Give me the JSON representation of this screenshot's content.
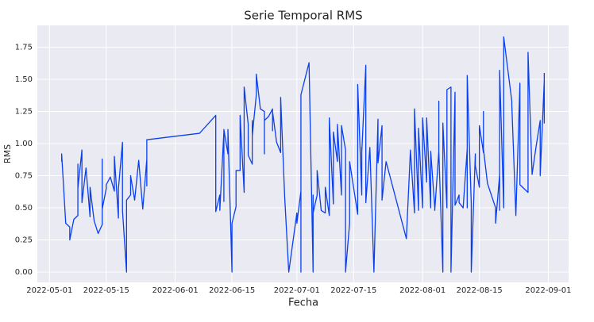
{
  "chart_data": {
    "type": "line",
    "title": "Serie Temporal RMS",
    "x_label": "Fecha",
    "y_label": "RMS",
    "color": "#0a3ff0",
    "grid": true,
    "xlim": [
      "2022-04-28",
      "2022-09-06"
    ],
    "ylim": [
      -0.08,
      1.92
    ],
    "xticks": [
      "2022-05-01",
      "2022-05-15",
      "2022-06-01",
      "2022-06-15",
      "2022-07-01",
      "2022-07-15",
      "2022-08-01",
      "2022-08-15",
      "2022-09-01"
    ],
    "yticks": [
      {
        "value": 0,
        "label": "0.00"
      },
      {
        "value": 0.25,
        "label": "0.25"
      },
      {
        "value": 0.5,
        "label": "0.50"
      },
      {
        "value": 0.75,
        "label": "0.75"
      },
      {
        "value": 1,
        "label": "1.00"
      },
      {
        "value": 1.25,
        "label": "1.25"
      },
      {
        "value": 1.5,
        "label": "1.50"
      },
      {
        "value": 1.75,
        "label": "1.75"
      }
    ],
    "x": [
      "2022-05-04",
      "2022-05-04",
      "2022-05-05",
      "2022-05-06",
      "2022-05-06",
      "2022-05-07",
      "2022-05-08",
      "2022-05-08",
      "2022-05-08",
      "2022-05-09",
      "2022-05-09",
      "2022-05-09",
      "2022-05-10",
      "2022-05-11",
      "2022-05-11",
      "2022-05-12",
      "2022-05-13",
      "2022-05-14",
      "2022-05-14",
      "2022-05-14",
      "2022-05-15",
      "2022-05-15",
      "2022-05-16",
      "2022-05-17",
      "2022-05-17",
      "2022-05-18",
      "2022-05-18",
      "2022-05-19",
      "2022-05-19",
      "2022-05-20",
      "2022-05-20",
      "2022-05-21",
      "2022-05-21",
      "2022-05-22",
      "2022-05-23",
      "2022-05-24",
      "2022-05-25",
      "2022-05-25",
      "2022-05-25",
      "2022-06-07",
      "2022-06-11",
      "2022-06-11",
      "2022-06-12",
      "2022-06-12",
      "2022-06-13",
      "2022-06-13",
      "2022-06-13",
      "2022-06-14",
      "2022-06-14",
      "2022-06-15",
      "2022-06-15",
      "2022-06-16",
      "2022-06-16",
      "2022-06-17",
      "2022-06-17",
      "2022-06-18",
      "2022-06-18",
      "2022-06-19",
      "2022-06-19",
      "2022-06-20",
      "2022-06-20",
      "2022-06-20",
      "2022-06-21",
      "2022-06-21",
      "2022-06-22",
      "2022-06-23",
      "2022-06-23",
      "2022-06-23",
      "2022-06-24",
      "2022-06-25",
      "2022-06-25",
      "2022-06-25",
      "2022-06-26",
      "2022-06-27",
      "2022-06-27",
      "2022-06-28",
      "2022-06-29",
      "2022-07-01",
      "2022-07-01",
      "2022-07-02",
      "2022-07-02",
      "2022-07-02",
      "2022-07-04",
      "2022-07-05",
      "2022-07-05",
      "2022-07-05",
      "2022-07-06",
      "2022-07-06",
      "2022-07-07",
      "2022-07-08",
      "2022-07-08",
      "2022-07-09",
      "2022-07-09",
      "2022-07-10",
      "2022-07-10",
      "2022-07-11",
      "2022-07-11",
      "2022-07-12",
      "2022-07-12",
      "2022-07-13",
      "2022-07-13",
      "2022-07-14",
      "2022-07-14",
      "2022-07-16",
      "2022-07-16",
      "2022-07-16",
      "2022-07-17",
      "2022-07-17",
      "2022-07-17",
      "2022-07-18",
      "2022-07-18",
      "2022-07-19",
      "2022-07-20",
      "2022-07-21",
      "2022-07-21",
      "2022-07-22",
      "2022-07-22",
      "2022-07-23",
      "2022-07-28",
      "2022-07-29",
      "2022-07-30",
      "2022-07-30",
      "2022-07-31",
      "2022-07-31",
      "2022-08-01",
      "2022-08-01",
      "2022-08-02",
      "2022-08-02",
      "2022-08-03",
      "2022-08-03",
      "2022-08-04",
      "2022-08-04",
      "2022-08-05",
      "2022-08-05",
      "2022-08-05",
      "2022-08-06",
      "2022-08-06",
      "2022-08-07",
      "2022-08-07",
      "2022-08-08",
      "2022-08-08",
      "2022-08-09",
      "2022-08-09",
      "2022-08-10",
      "2022-08-10",
      "2022-08-11",
      "2022-08-12",
      "2022-08-12",
      "2022-08-12",
      "2022-08-13",
      "2022-08-13",
      "2022-08-14",
      "2022-08-14",
      "2022-08-15",
      "2022-08-15",
      "2022-08-16",
      "2022-08-16",
      "2022-08-16",
      "2022-08-17",
      "2022-08-19",
      "2022-08-19",
      "2022-08-20",
      "2022-08-20",
      "2022-08-20",
      "2022-08-21",
      "2022-08-21",
      "2022-08-23",
      "2022-08-23",
      "2022-08-24",
      "2022-08-25",
      "2022-08-25",
      "2022-08-27",
      "2022-08-27",
      "2022-08-28",
      "2022-08-29",
      "2022-08-30",
      "2022-08-30",
      "2022-08-31",
      "2022-08-31",
      "2022-08-31"
    ],
    "values": [
      0.86,
      0.92,
      0.38,
      0.35,
      0.25,
      0.41,
      0.44,
      0.84,
      0.65,
      0.95,
      0.95,
      0.54,
      0.81,
      0.43,
      0.66,
      0.4,
      0.3,
      0.37,
      0.88,
      0.49,
      0.65,
      0.68,
      0.74,
      0.63,
      0.9,
      0.42,
      0.65,
      1.01,
      0.48,
      0.0,
      0.56,
      0.6,
      0.75,
      0.56,
      0.87,
      0.49,
      0.88,
      0.67,
      1.03,
      1.08,
      1.22,
      0.47,
      0.6,
      0.48,
      1.09,
      0.55,
      1.11,
      0.92,
      1.11,
      0.0,
      0.38,
      0.51,
      0.79,
      0.79,
      1.22,
      0.62,
      1.44,
      1.15,
      0.91,
      0.84,
      1.18,
      1.06,
      1.38,
      1.54,
      1.27,
      1.25,
      0.92,
      1.18,
      1.21,
      1.27,
      1.1,
      1.25,
      1.01,
      0.93,
      1.36,
      0.58,
      0.0,
      0.46,
      0.38,
      0.63,
      0.0,
      1.38,
      1.63,
      0.0,
      0.6,
      0.46,
      0.6,
      0.79,
      0.48,
      0.46,
      0.66,
      0.44,
      1.2,
      0.53,
      1.09,
      0.86,
      1.15,
      0.6,
      1.14,
      0.95,
      0.0,
      0.38,
      0.86,
      0.45,
      1.38,
      1.46,
      0.6,
      0.97,
      0.93,
      1.61,
      0.54,
      0.97,
      0.0,
      1.19,
      0.85,
      1.14,
      0.56,
      0.86,
      0.26,
      0.95,
      0.46,
      1.27,
      0.48,
      1.12,
      0.5,
      1.2,
      0.7,
      1.2,
      0.5,
      0.94,
      0.5,
      0.48,
      0.94,
      1.33,
      0.94,
      0.0,
      1.16,
      0.5,
      1.42,
      1.44,
      0.0,
      1.4,
      0.52,
      0.6,
      0.54,
      0.5,
      0.96,
      0.5,
      1.53,
      0.53,
      0.0,
      0.92,
      0.83,
      0.66,
      1.14,
      0.93,
      1.25,
      0.96,
      0.69,
      0.5,
      0.38,
      0.76,
      0.48,
      1.57,
      0.5,
      1.83,
      1.33,
      1.3,
      0.44,
      1.47,
      0.68,
      0.62,
      1.71,
      0.76,
      0.98,
      1.18,
      0.75,
      1.49,
      1.16,
      1.55
    ]
  }
}
